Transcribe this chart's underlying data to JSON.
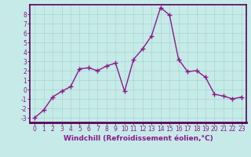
{
  "x": [
    0,
    1,
    2,
    3,
    4,
    5,
    6,
    7,
    8,
    9,
    10,
    11,
    12,
    13,
    14,
    15,
    16,
    17,
    18,
    19,
    20,
    21,
    22,
    23
  ],
  "y": [
    -3,
    -2.2,
    -0.8,
    -0.2,
    0.3,
    2.2,
    2.3,
    2.0,
    2.5,
    2.8,
    -0.2,
    3.2,
    4.3,
    5.7,
    8.7,
    7.9,
    3.2,
    1.9,
    2.0,
    1.3,
    -0.5,
    -0.7,
    -1.0,
    -0.8
  ],
  "line_color": "#8b1a8b",
  "marker": "+",
  "marker_size": 4,
  "bg_color": "#c5eae7",
  "grid_color": "#a8d5d1",
  "xlabel": "Windchill (Refroidissement éolien,°C)",
  "xlim": [
    -0.5,
    23.5
  ],
  "ylim": [
    -3.5,
    9.0
  ],
  "yticks": [
    -3,
    -2,
    -1,
    0,
    1,
    2,
    3,
    4,
    5,
    6,
    7,
    8
  ],
  "xticks": [
    0,
    1,
    2,
    3,
    4,
    5,
    6,
    7,
    8,
    9,
    10,
    11,
    12,
    13,
    14,
    15,
    16,
    17,
    18,
    19,
    20,
    21,
    22,
    23
  ],
  "tick_color": "#8b1a8b",
  "label_color": "#8b1a8b",
  "label_fontsize": 6.5,
  "tick_fontsize": 5.5,
  "axis_line_color": "#8b1a8b",
  "border_color": "#5a005a",
  "lw": 1.0
}
